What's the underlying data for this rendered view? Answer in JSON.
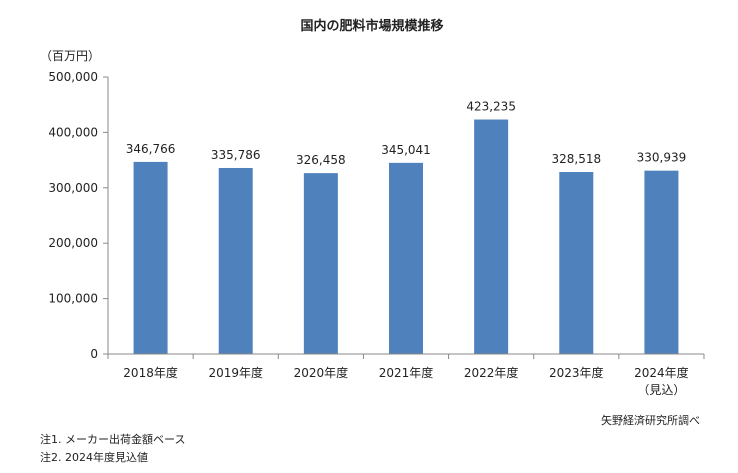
{
  "chart_data": {
    "type": "bar",
    "title": "国内の肥料市場規模推移",
    "unit_label": "（百万円）",
    "categories": [
      [
        "2018年度"
      ],
      [
        "2019年度"
      ],
      [
        "2020年度"
      ],
      [
        "2021年度"
      ],
      [
        "2022年度"
      ],
      [
        "2023年度"
      ],
      [
        "2024年度",
        "（見込）"
      ]
    ],
    "values": [
      346766,
      335786,
      326458,
      345041,
      423235,
      328518,
      330939
    ],
    "value_labels": [
      "346,766",
      "335,786",
      "326,458",
      "345,041",
      "423,235",
      "328,518",
      "330,939"
    ],
    "ylim": [
      0,
      500000
    ],
    "yticks": [
      "0",
      "100,000",
      "200,000",
      "300,000",
      "400,000",
      "500,000"
    ],
    "bar_color": "#4f81bd",
    "grid": false,
    "legend": "none"
  },
  "source": "矢野経済研究所調べ",
  "notes": [
    "注1. メーカー出荷金額ベース",
    "注2. 2024年度見込値"
  ]
}
